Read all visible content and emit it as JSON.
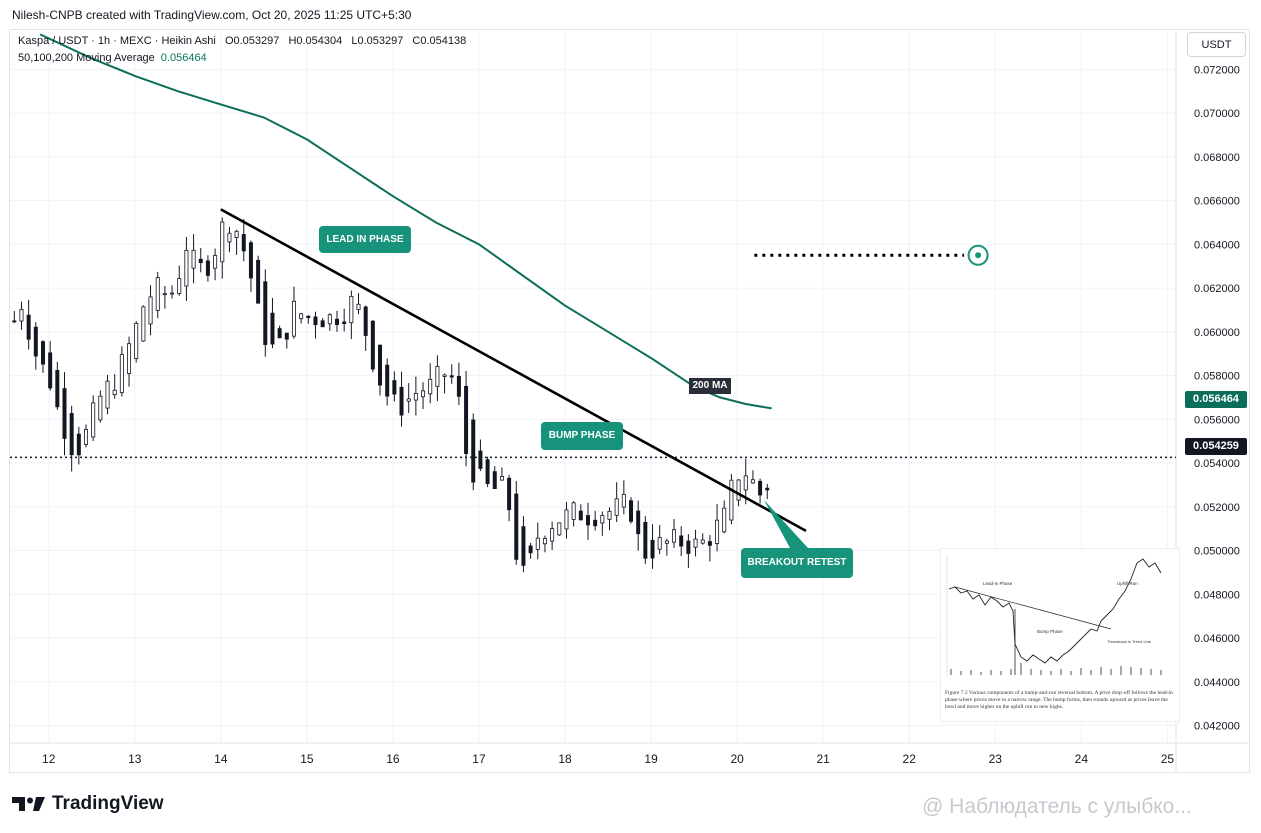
{
  "header": {
    "text": "Nilesh-CNPB created with TradingView.com, Oct 20, 2025 11:25 UTC+5:30"
  },
  "legend": {
    "symbol": "Kaspa / USDT · 1h · MEXC · Heikin Ashi",
    "open": "O0.053297",
    "high": "H0.054304",
    "low": "L0.053297",
    "close": "C0.054138",
    "ma_label": "50,100,200 Moving Average",
    "ma_value": "0.056464"
  },
  "currency": "USDT",
  "price_badges": {
    "ma": "0.056464",
    "last": "0.054259"
  },
  "annotations": {
    "lead_in": "LEAD IN PHASE",
    "bump": "BUMP PHASE",
    "breakout": "BREAKOUT RETEST",
    "ma200": "200 MA"
  },
  "logo": "TradingView",
  "watermark": "@ Наблюдатель с улыбко...",
  "inset": {
    "caption": "Figure 7.2 Various components of a bump-and-run reversal bottom. A price drop-off follows the lead-in phase where prices move in a narrow range. The bump forms, then rounds upward as prices leave the bowl and move higher on the uphill run to new highs.",
    "label_lead_in": "Lead-In Phase",
    "label_bump": "Bump Phase",
    "label_uphill": "Uphill Run",
    "label_throwback": "Throwback to Trend Line"
  },
  "colors": {
    "up": "#131722",
    "down": "#131722",
    "ma": "#0b6e5a",
    "accent": "#16937a"
  },
  "chart_data": {
    "type": "candlestick",
    "title": "",
    "xlabel": "",
    "ylabel": "",
    "x_ticks": [
      "12",
      "13",
      "14",
      "15",
      "16",
      "17",
      "18",
      "19",
      "20",
      "21",
      "22",
      "23",
      "24",
      "25"
    ],
    "y_ticks": [
      "0.072000",
      "0.070000",
      "0.068000",
      "0.066000",
      "0.064000",
      "0.062000",
      "0.060000",
      "0.058000",
      "0.056000",
      "0.054000",
      "0.052000",
      "0.050000",
      "0.048000",
      "0.046000",
      "0.044000",
      "0.042000"
    ],
    "ylim": [
      0.0412,
      0.0738
    ],
    "xlim": [
      11.55,
      25.1
    ],
    "close_path": [
      [
        11.6,
        0.0605
      ],
      [
        11.7,
        0.0615
      ],
      [
        11.8,
        0.0595
      ],
      [
        11.9,
        0.0585
      ],
      [
        12.0,
        0.058
      ],
      [
        12.1,
        0.0565
      ],
      [
        12.2,
        0.0555
      ],
      [
        12.3,
        0.0545
      ],
      [
        12.4,
        0.055
      ],
      [
        12.5,
        0.056
      ],
      [
        12.6,
        0.057
      ],
      [
        12.7,
        0.0575
      ],
      [
        12.8,
        0.058
      ],
      [
        12.9,
        0.059
      ],
      [
        13.0,
        0.06
      ],
      [
        13.1,
        0.0612
      ],
      [
        13.2,
        0.0618
      ],
      [
        13.3,
        0.062
      ],
      [
        13.4,
        0.0615
      ],
      [
        13.5,
        0.0625
      ],
      [
        13.6,
        0.064
      ],
      [
        13.7,
        0.063
      ],
      [
        13.8,
        0.0628
      ],
      [
        13.9,
        0.0635
      ],
      [
        14.0,
        0.0645
      ],
      [
        14.05,
        0.0652
      ],
      [
        14.15,
        0.065
      ],
      [
        14.25,
        0.064
      ],
      [
        14.35,
        0.0625
      ],
      [
        14.45,
        0.0605
      ],
      [
        14.55,
        0.0595
      ],
      [
        14.65,
        0.059
      ],
      [
        14.75,
        0.06
      ],
      [
        14.85,
        0.061
      ],
      [
        14.95,
        0.0608
      ],
      [
        15.05,
        0.0606
      ],
      [
        15.15,
        0.0607
      ],
      [
        15.25,
        0.0606
      ],
      [
        15.35,
        0.0608
      ],
      [
        15.45,
        0.061
      ],
      [
        15.55,
        0.0615
      ],
      [
        15.65,
        0.0605
      ],
      [
        15.75,
        0.059
      ],
      [
        15.85,
        0.0578
      ],
      [
        15.95,
        0.057
      ],
      [
        16.05,
        0.0565
      ],
      [
        16.15,
        0.0568
      ],
      [
        16.25,
        0.0572
      ],
      [
        16.35,
        0.0574
      ],
      [
        16.45,
        0.0575
      ],
      [
        16.55,
        0.058
      ],
      [
        16.65,
        0.0582
      ],
      [
        16.75,
        0.0572
      ],
      [
        16.85,
        0.0545
      ],
      [
        16.95,
        0.0535
      ],
      [
        17.05,
        0.053
      ],
      [
        17.15,
        0.0527
      ],
      [
        17.25,
        0.053
      ],
      [
        17.35,
        0.052
      ],
      [
        17.45,
        0.0495
      ],
      [
        17.55,
        0.0485
      ],
      [
        17.65,
        0.0505
      ],
      [
        17.75,
        0.051
      ],
      [
        17.85,
        0.0513
      ],
      [
        17.95,
        0.0515
      ],
      [
        18.05,
        0.0516
      ],
      [
        18.15,
        0.0518
      ],
      [
        18.25,
        0.0516
      ],
      [
        18.35,
        0.0517
      ],
      [
        18.45,
        0.0518
      ],
      [
        18.55,
        0.0518
      ],
      [
        18.65,
        0.052
      ],
      [
        18.75,
        0.0521
      ],
      [
        18.85,
        0.0505
      ],
      [
        18.95,
        0.0498
      ],
      [
        19.05,
        0.0502
      ],
      [
        19.15,
        0.0503
      ],
      [
        19.25,
        0.0504
      ],
      [
        19.35,
        0.0504
      ],
      [
        19.45,
        0.0503
      ],
      [
        19.55,
        0.0502
      ],
      [
        19.65,
        0.0505
      ],
      [
        19.75,
        0.051
      ],
      [
        19.85,
        0.0515
      ],
      [
        19.95,
        0.053
      ],
      [
        20.05,
        0.0538
      ],
      [
        20.15,
        0.0534
      ],
      [
        20.25,
        0.0525
      ],
      [
        20.35,
        0.053
      ],
      [
        20.42,
        0.0542
      ]
    ],
    "series": [
      {
        "name": "200 MA",
        "x": [
          11.9,
          12.5,
          13.0,
          13.5,
          14.0,
          14.5,
          15.0,
          15.5,
          16.0,
          16.5,
          17.0,
          17.5,
          18.0,
          18.5,
          19.0,
          19.5,
          19.8,
          20.1,
          20.4
        ],
        "values": [
          0.0736,
          0.0725,
          0.0717,
          0.071,
          0.0704,
          0.0698,
          0.0688,
          0.0675,
          0.0662,
          0.065,
          0.064,
          0.0626,
          0.0612,
          0.06,
          0.0588,
          0.0575,
          0.057,
          0.0567,
          0.0565
        ]
      }
    ],
    "trendline": {
      "x": [
        14.0,
        20.8
      ],
      "y": [
        0.0656,
        0.0509
      ]
    },
    "target_line": {
      "x": [
        20.2,
        22.8
      ],
      "y": [
        0.0635,
        0.0635
      ]
    },
    "last_price_line": 0.054259,
    "grid": true,
    "legend": "top-left"
  }
}
